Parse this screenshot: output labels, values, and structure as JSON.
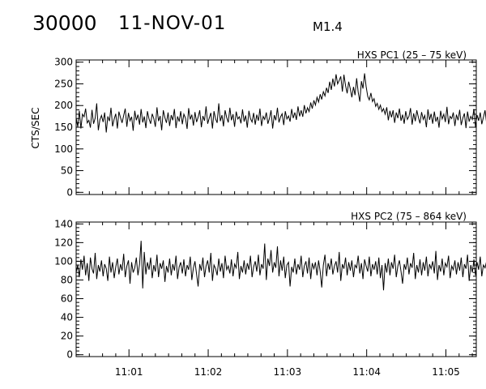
{
  "header": {
    "event_id": "30000",
    "date": "11-NOV-01",
    "flare_class": "M1.4"
  },
  "chart_data": [
    {
      "type": "line",
      "title": "HXS PC1 (25 – 75 keV)",
      "ylabel": "CTS/SEC",
      "xlabel": "",
      "xlim": [
        "11:00:20",
        "11:05:23"
      ],
      "ylim": [
        -5,
        305
      ],
      "yticks": [
        0,
        50,
        100,
        150,
        200,
        250,
        300
      ],
      "xticks": [
        "11:01",
        "11:02",
        "11:03",
        "11:04",
        "11:05"
      ],
      "x_start": "11:00:20",
      "x_step_seconds": 1.2,
      "series": [
        {
          "name": "",
          "values": [
            172,
            151,
            188,
            147,
            180,
            174,
            193,
            160,
            166,
            149,
            190,
            158,
            171,
            205,
            143,
            167,
            177,
            162,
            184,
            138,
            175,
            164,
            195,
            152,
            169,
            181,
            147,
            186,
            172,
            160,
            177,
            193,
            151,
            183,
            165,
            174,
            142,
            188,
            166,
            179,
            156,
            192,
            161,
            175,
            148,
            187,
            169,
            158,
            181,
            170,
            151,
            196,
            164,
            176,
            143,
            189,
            172,
            160,
            184,
            153,
            178,
            166,
            192,
            148,
            175,
            163,
            187,
            157,
            180,
            171,
            146,
            194,
            168,
            179,
            154,
            185,
            162,
            173,
            189,
            150,
            176,
            165,
            198,
            158,
            171,
            183,
            147,
            187,
            169,
            160,
            205,
            164,
            178,
            152,
            189,
            172,
            161,
            195,
            166,
            180,
            151,
            186,
            169,
            174,
            159,
            191,
            163,
            177,
            149,
            188,
            170,
            162,
            183,
            156,
            179,
            165,
            193,
            153,
            175,
            168,
            184,
            158,
            171,
            189,
            147,
            178,
            166,
            195,
            161,
            174,
            181,
            155,
            187,
            169,
            176,
            163,
            192,
            171,
            184,
            167,
            198,
            175,
            189,
            174,
            201,
            182,
            195,
            186,
            207,
            193,
            212,
            201,
            219,
            208,
            226,
            214,
            232,
            222,
            241,
            229,
            255,
            236,
            262,
            244,
            272,
            250,
            258,
            267,
            232,
            271,
            246,
            228,
            255,
            238,
            219,
            243,
            224,
            263,
            231,
            209,
            256,
            239,
            274,
            244,
            221,
            213,
            229,
            209,
            216,
            198,
            205,
            191,
            201,
            186,
            193,
            180,
            196,
            166,
            188,
            173,
            189,
            160,
            184,
            171,
            193,
            165,
            179,
            158,
            187,
            168,
            175,
            194,
            156,
            182,
            164,
            189,
            172,
            159,
            185,
            168,
            177,
            150,
            191,
            167,
            181,
            158,
            186,
            163,
            174,
            149,
            188,
            169,
            180,
            162,
            197,
            157,
            175,
            170,
            184,
            153,
            179,
            166,
            190,
            155,
            171,
            182,
            148,
            186,
            163,
            175,
            168,
            192,
            151,
            178,
            165,
            184,
            157,
            173,
            189,
            160,
            176,
            167,
            183,
            150,
            187,
            164,
            172,
            158,
            179,
            139,
            182,
            163,
            173,
            149,
            185,
            160,
            177,
            168,
            191,
            155,
            172,
            183,
            161,
            176,
            145,
            187,
            166,
            174,
            158,
            181,
            170,
            193,
            152,
            178,
            165,
            186,
            157,
            173,
            184,
            162,
            175,
            196,
            158,
            177,
            169,
            188,
            151,
            181,
            166,
            174,
            209,
            160,
            183,
            171,
            165,
            190,
            157,
            176,
            168,
            184,
            154,
            179,
            167,
            172,
            188,
            156,
            178,
            170,
            163,
            186,
            149,
            174,
            165,
            159,
            215,
            166,
            181,
            148,
            172,
            159,
            176,
            190,
            153,
            182,
            168,
            164,
            186,
            150,
            175,
            160
          ]
        }
      ],
      "grid": false,
      "legend": "none"
    },
    {
      "type": "line",
      "title": "HXS PC2 (75 – 864 keV)",
      "ylabel": "",
      "xlabel": "",
      "xlim": [
        "11:00:20",
        "11:05:23"
      ],
      "ylim": [
        -2,
        142
      ],
      "yticks": [
        0,
        20,
        40,
        60,
        80,
        100,
        120,
        140
      ],
      "xticks": [
        "11:01",
        "11:02",
        "11:03",
        "11:04",
        "11:05"
      ],
      "x_start": "11:00:20",
      "x_step_seconds": 1.2,
      "series": [
        {
          "name": "",
          "values": [
            88,
            96,
            83,
            102,
            91,
            106,
            85,
            98,
            79,
            104,
            92,
            87,
            109,
            81,
            96,
            89,
            101,
            84,
            97,
            92,
            79,
            105,
            88,
            99,
            82,
            94,
            103,
            86,
            97,
            90,
            108,
            83,
            95,
            101,
            76,
            99,
            88,
            93,
            104,
            85,
            97,
            122,
            71,
            110,
            86,
            99,
            91,
            104,
            82,
            96,
            89,
            107,
            83,
            98,
            92,
            101,
            78,
            95,
            88,
            103,
            85,
            97,
            90,
            106,
            81,
            94,
            99,
            87,
            102,
            84,
            96,
            91,
            105,
            80,
            93,
            100,
            86,
            73,
            97,
            90,
            104,
            83,
            95,
            101,
            88,
            109,
            79,
            96,
            92,
            85,
            103,
            89,
            98,
            82,
            106,
            91,
            95,
            87,
            102,
            84,
            97,
            93,
            110,
            81,
            95,
            88,
            101,
            86,
            98,
            91,
            106,
            83,
            94,
            100,
            89,
            107,
            85,
            97,
            92,
            119,
            80,
            103,
            95,
            112,
            88,
            99,
            93,
            116,
            84,
            101,
            90,
            105,
            82,
            96,
            99,
            73,
            94,
            88,
            103,
            86,
            97,
            91,
            106,
            83,
            95,
            100,
            87,
            104,
            81,
            98,
            92,
            99,
            85,
            101,
            89,
            72,
            96,
            107,
            84,
            98,
            91,
            103,
            86,
            95,
            100,
            88,
            110,
            79,
            97,
            92,
            104,
            85,
            99,
            90,
            101,
            83,
            96,
            93,
            106,
            87,
            98,
            81,
            102,
            95,
            89,
            105,
            84,
            97,
            91,
            100,
            86,
            104,
            82,
            96,
            69,
            98,
            88,
            103,
            85,
            99,
            92,
            107,
            83,
            95,
            101,
            89,
            76,
            97,
            91,
            104,
            86,
            98,
            93,
            109,
            81,
            96,
            88,
            102,
            85,
            99,
            90,
            105,
            84,
            97,
            92,
            100,
            87,
            111,
            80,
            96,
            89,
            103,
            85,
            98,
            94,
            106,
            82,
            95,
            91,
            101,
            86,
            99,
            90,
            104,
            83,
            97,
            92,
            107,
            79,
            96,
            88,
            102,
            85,
            99,
            91,
            105,
            84,
            96,
            93,
            100,
            87,
            108,
            81,
            97,
            89,
            103,
            86,
            98,
            92,
            70,
            95,
            90,
            104,
            83,
            97,
            91,
            101,
            85,
            99,
            93,
            106,
            82,
            96,
            88,
            102,
            87,
            98,
            90,
            105,
            84,
            97,
            92,
            109,
            80,
            96,
            89,
            103,
            86,
            99,
            91,
            100,
            85,
            97,
            93,
            106,
            83,
            95,
            90,
            102,
            87,
            98,
            91,
            104,
            84,
            96,
            89,
            101,
            88,
            99,
            92,
            107,
            81,
            97,
            90,
            103,
            85,
            98
          ]
        }
      ],
      "grid": false,
      "legend": "none"
    }
  ]
}
